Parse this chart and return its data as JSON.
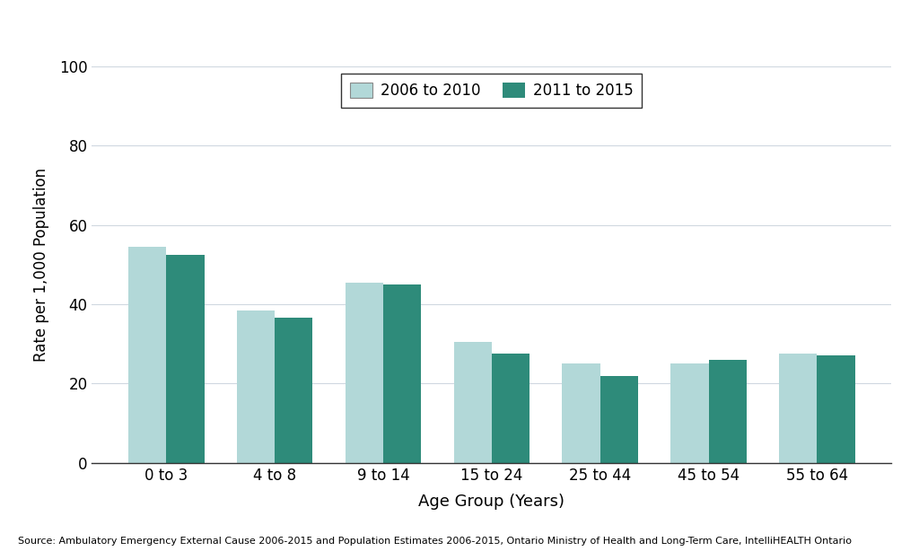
{
  "categories": [
    "0 to 3",
    "4 to 8",
    "9 to 14",
    "15 to 24",
    "25 to 44",
    "45 to 54",
    "55 to 64"
  ],
  "values_2006_2010": [
    54.5,
    38.5,
    45.5,
    30.5,
    25.0,
    25.0,
    27.5
  ],
  "values_2011_2015": [
    52.5,
    36.5,
    45.0,
    27.5,
    22.0,
    26.0,
    27.0
  ],
  "color_2006_2010": "#b2d8d8",
  "color_2011_2015": "#2e8b7a",
  "legend_label_1": "2006 to 2010",
  "legend_label_2": "2011 to 2015",
  "xlabel": "Age Group (Years)",
  "ylabel": "Rate per 1,000 Population",
  "ylim": [
    0,
    100
  ],
  "yticks": [
    0,
    20,
    40,
    60,
    80,
    100
  ],
  "source_text": "Source: Ambulatory Emergency External Cause 2006-2015 and Population Estimates 2006-2015, Ontario Ministry of Health and Long-Term Care, IntelliHEALTH Ontario",
  "background_color": "#ffffff",
  "grid_color": "#d0d8e0",
  "bar_width": 0.35,
  "legend_box_color": "#000000"
}
